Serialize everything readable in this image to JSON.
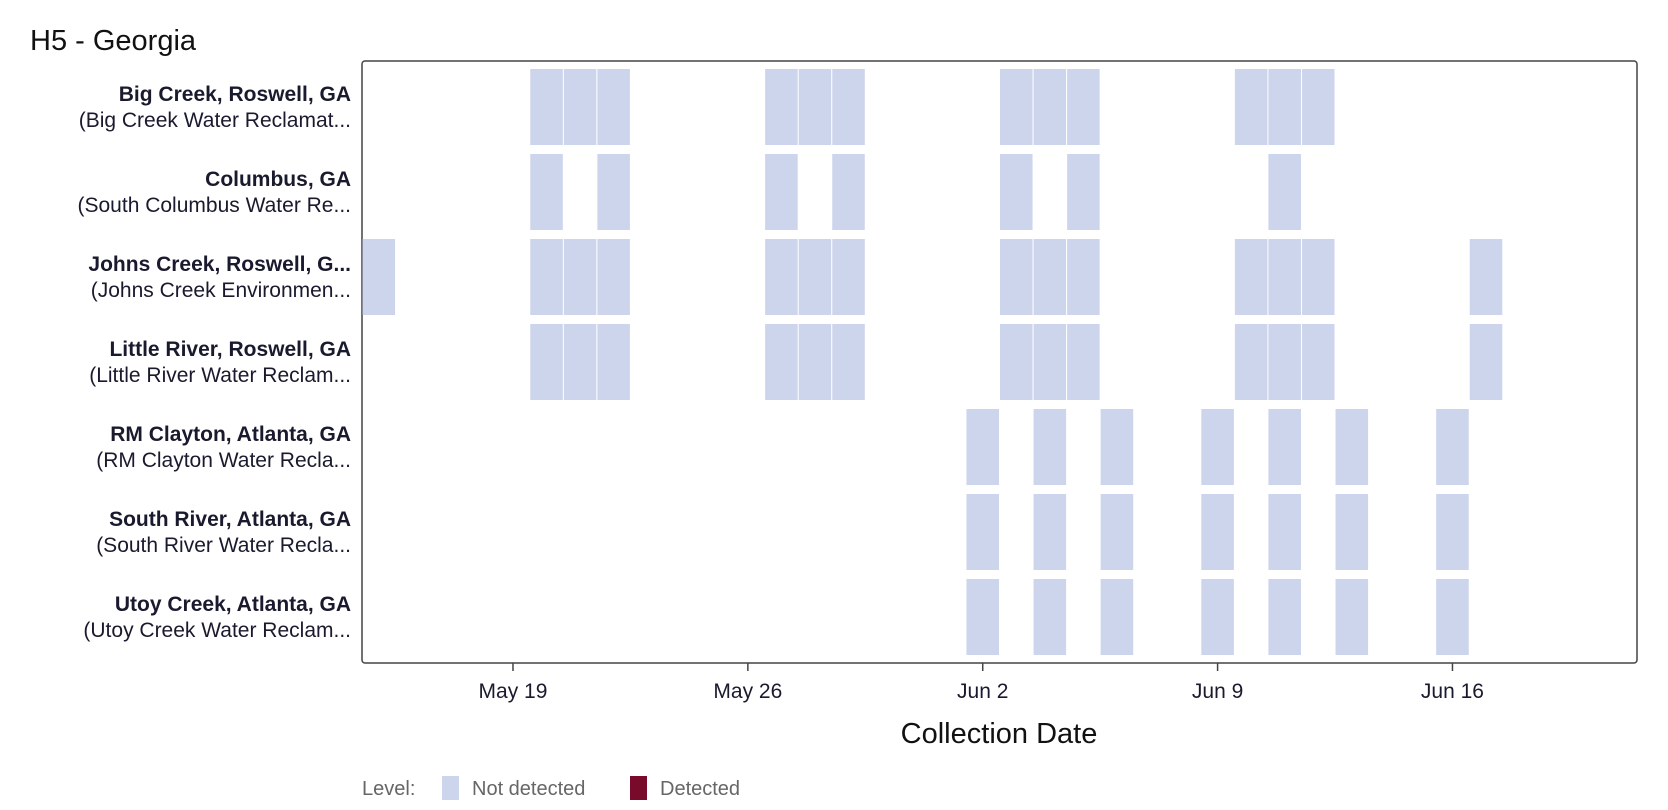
{
  "chart_data": {
    "type": "heatmap",
    "title": "H5 - Georgia",
    "xlabel": "Collection Date",
    "x_domain": [
      "2024-05-15",
      "2024-06-22"
    ],
    "x_ticks": [
      {
        "date": "2024-05-19",
        "label": "May 19"
      },
      {
        "date": "2024-05-26",
        "label": "May 26"
      },
      {
        "date": "2024-06-02",
        "label": "Jun 2"
      },
      {
        "date": "2024-06-09",
        "label": "Jun 9"
      },
      {
        "date": "2024-06-16",
        "label": "Jun 16"
      }
    ],
    "legend": {
      "title": "Level:",
      "position": "bottom-left",
      "items": [
        {
          "label": "Not detected",
          "color": "#cdd5ec"
        },
        {
          "label": "Detected",
          "color": "#7a0a2c"
        }
      ]
    },
    "rows": [
      {
        "name": "Big Creek, Roswell, GA",
        "sub": "(Big Creek Water Reclamat...",
        "not_detected": [
          "2024-05-20",
          "2024-05-21",
          "2024-05-22",
          "2024-05-27",
          "2024-05-28",
          "2024-05-29",
          "2024-06-03",
          "2024-06-04",
          "2024-06-05",
          "2024-06-10",
          "2024-06-11",
          "2024-06-12"
        ],
        "detected": []
      },
      {
        "name": "Columbus, GA",
        "sub": "(South Columbus Water Re...",
        "not_detected": [
          "2024-05-20",
          "2024-05-22",
          "2024-05-27",
          "2024-05-29",
          "2024-06-03",
          "2024-06-05",
          "2024-06-11"
        ],
        "detected": []
      },
      {
        "name": "Johns Creek, Roswell, G...",
        "sub": "(Johns Creek Environmen...",
        "not_detected": [
          "2024-05-15",
          "2024-05-20",
          "2024-05-21",
          "2024-05-22",
          "2024-05-27",
          "2024-05-28",
          "2024-05-29",
          "2024-06-03",
          "2024-06-04",
          "2024-06-05",
          "2024-06-10",
          "2024-06-11",
          "2024-06-12",
          "2024-06-17"
        ],
        "detected": []
      },
      {
        "name": "Little River, Roswell, GA",
        "sub": "(Little River Water Reclam...",
        "not_detected": [
          "2024-05-20",
          "2024-05-21",
          "2024-05-22",
          "2024-05-27",
          "2024-05-28",
          "2024-05-29",
          "2024-06-03",
          "2024-06-04",
          "2024-06-05",
          "2024-06-10",
          "2024-06-11",
          "2024-06-12",
          "2024-06-17"
        ],
        "detected": []
      },
      {
        "name": "RM Clayton, Atlanta, GA",
        "sub": "(RM Clayton Water Recla...",
        "not_detected": [
          "2024-06-02",
          "2024-06-04",
          "2024-06-06",
          "2024-06-09",
          "2024-06-11",
          "2024-06-13",
          "2024-06-16"
        ],
        "detected": []
      },
      {
        "name": "South River, Atlanta, GA",
        "sub": "(South River Water Recla...",
        "not_detected": [
          "2024-06-02",
          "2024-06-04",
          "2024-06-06",
          "2024-06-09",
          "2024-06-11",
          "2024-06-13",
          "2024-06-16"
        ],
        "detected": []
      },
      {
        "name": "Utoy Creek, Atlanta, GA",
        "sub": "(Utoy Creek Water Reclam...",
        "not_detected": [
          "2024-06-02",
          "2024-06-04",
          "2024-06-06",
          "2024-06-09",
          "2024-06-11",
          "2024-06-13",
          "2024-06-16"
        ],
        "detected": []
      }
    ]
  }
}
